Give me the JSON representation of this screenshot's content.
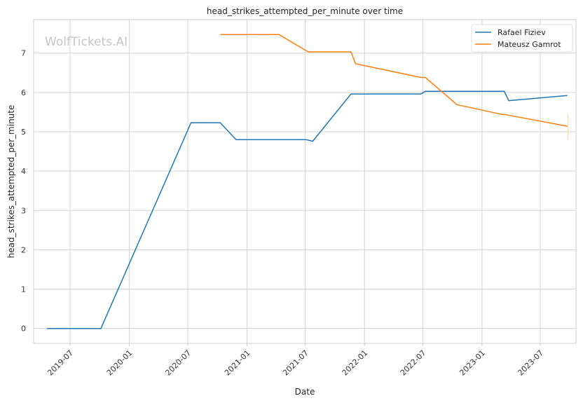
{
  "chart_data": {
    "type": "line",
    "title": "head_strikes_attempted_per_minute over time",
    "xlabel": "Date",
    "ylabel": "head_strikes_attempted_per_minute",
    "watermark": "WolfTickets.AI",
    "x_is_date": true,
    "xlim": [
      "2019-03-10",
      "2023-10-20"
    ],
    "ylim": [
      -0.38,
      7.85
    ],
    "x_ticks": [
      "2019-07-01",
      "2020-01-01",
      "2020-07-01",
      "2021-01-01",
      "2021-07-01",
      "2022-01-01",
      "2022-07-01",
      "2023-01-01",
      "2023-07-01"
    ],
    "x_tick_labels": [
      "2019-07",
      "2020-01",
      "2020-07",
      "2021-01",
      "2021-07",
      "2022-01",
      "2022-07",
      "2023-01",
      "2023-07"
    ],
    "y_ticks": [
      0,
      1,
      2,
      3,
      4,
      5,
      6,
      7
    ],
    "y_tick_labels": [
      "0",
      "1",
      "2",
      "3",
      "4",
      "5",
      "6",
      "7"
    ],
    "grid": true,
    "legend_position": "top-right",
    "series": [
      {
        "name": "Rafael Fiziev",
        "color": "#1f77b4",
        "points": [
          {
            "x": "2019-04-20",
            "y": 0.0
          },
          {
            "x": "2019-10-05",
            "y": 0.0
          },
          {
            "x": "2020-07-11",
            "y": 5.23
          },
          {
            "x": "2020-10-10",
            "y": 5.23
          },
          {
            "x": "2020-11-28",
            "y": 4.8
          },
          {
            "x": "2021-07-03",
            "y": 4.8
          },
          {
            "x": "2021-07-24",
            "y": 4.76
          },
          {
            "x": "2021-11-20",
            "y": 5.96
          },
          {
            "x": "2022-06-25",
            "y": 5.96
          },
          {
            "x": "2022-07-09",
            "y": 6.03
          },
          {
            "x": "2023-03-11",
            "y": 6.03
          },
          {
            "x": "2023-03-25",
            "y": 5.79
          },
          {
            "x": "2023-09-23",
            "y": 5.92
          }
        ]
      },
      {
        "name": "Mateusz Gamrot",
        "color": "#ff7f0e",
        "points": [
          {
            "x": "2020-10-10",
            "y": 7.47
          },
          {
            "x": "2021-04-10",
            "y": 7.47
          },
          {
            "x": "2021-07-10",
            "y": 7.03
          },
          {
            "x": "2021-11-20",
            "y": 7.03
          },
          {
            "x": "2021-12-04",
            "y": 6.73
          },
          {
            "x": "2022-06-25",
            "y": 6.38
          },
          {
            "x": "2022-07-09",
            "y": 6.38
          },
          {
            "x": "2022-10-15",
            "y": 5.69
          },
          {
            "x": "2023-03-04",
            "y": 5.44
          },
          {
            "x": "2023-03-18",
            "y": 5.43
          },
          {
            "x": "2023-09-23",
            "y": 5.14
          }
        ]
      }
    ]
  }
}
